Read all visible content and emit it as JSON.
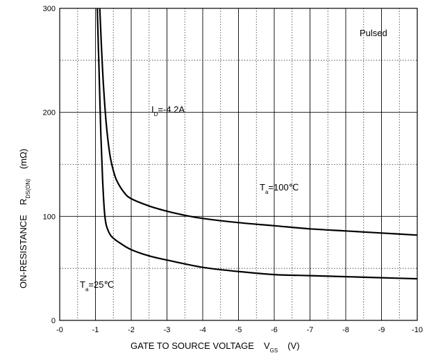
{
  "chart_data": {
    "type": "line",
    "xlabel": "GATE TO SOURCE VOLTAGE",
    "xlabel_symbol": "V",
    "xlabel_sub": "GS",
    "xlabel_unit": "(V)",
    "ylabel": "ON-RESISTANCE",
    "ylabel_symbol": "R",
    "ylabel_sub": "DS(ON)",
    "ylabel_unit": "(mΩ)",
    "xlim": [
      0,
      -10
    ],
    "ylim": [
      0,
      300
    ],
    "x_ticks": [
      "-0",
      "-1",
      "-2",
      "-3",
      "-4",
      "-5",
      "-6",
      "-7",
      "-8",
      "-9",
      "-10"
    ],
    "y_ticks": [
      "0",
      "100",
      "200",
      "300"
    ],
    "grid": true,
    "annotations": {
      "pulsed": "Pulsed",
      "id_main": "I",
      "id_sub": "D",
      "id_rest": "=-4.2A",
      "t100_main": "T",
      "t100_sub": "a",
      "t100_rest": "=100℃",
      "t25_main": "T",
      "t25_sub": "a",
      "t25_rest": "=25℃"
    },
    "series": [
      {
        "name": "Ta=100℃",
        "x": [
          -1.12,
          -1.2,
          -1.3,
          -1.4,
          -1.5,
          -1.6,
          -1.8,
          -2.0,
          -2.5,
          -3.0,
          -3.5,
          -4.0,
          -5.0,
          -6.0,
          -7.0,
          -8.0,
          -9.0,
          -10.0
        ],
        "y": [
          300,
          240,
          190,
          160,
          144,
          134,
          123,
          117,
          110,
          105,
          101,
          98,
          94,
          91,
          88,
          86,
          84,
          82
        ]
      },
      {
        "name": "Ta=25℃",
        "x": [
          -1.05,
          -1.1,
          -1.15,
          -1.2,
          -1.25,
          -1.3,
          -1.4,
          -1.5,
          -1.7,
          -2.0,
          -2.5,
          -3.0,
          -4.0,
          -5.0,
          -6.0,
          -7.0,
          -8.0,
          -9.0,
          -10.0
        ],
        "y": [
          300,
          240,
          180,
          135,
          105,
          92,
          83,
          79,
          74,
          68,
          62,
          58,
          51,
          47,
          44,
          43,
          42,
          41,
          40
        ]
      }
    ]
  }
}
